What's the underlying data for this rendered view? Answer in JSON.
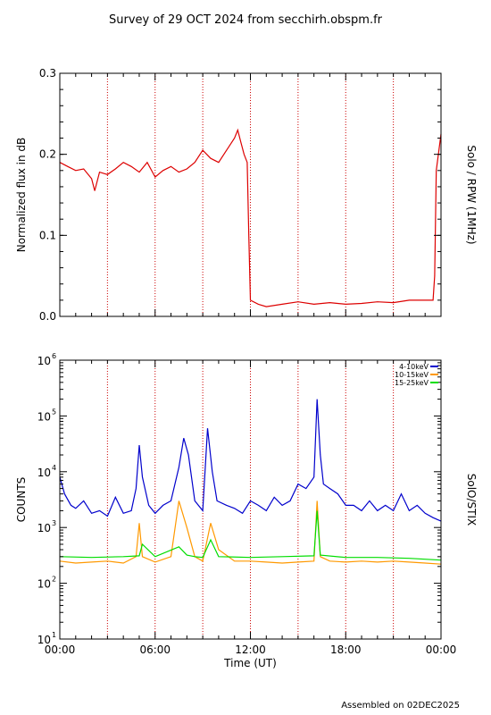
{
  "title": "Survey of 29 OCT 2024 from secchirh.obspm.fr",
  "footer": "Assembled on 02DEC2025",
  "colors": {
    "rpw": "#dd0000",
    "low": "#0000cc",
    "mid": "#ff9900",
    "high": "#00dd00",
    "grid": "#cc0000",
    "axis": "#000000"
  },
  "chart_data": [
    {
      "type": "line",
      "panel": "top",
      "ylabel": "Normalized flux in dB",
      "right_label": "Solo / RPW (1MHz)",
      "ylim": [
        0,
        0.3
      ],
      "xlim": [
        0,
        24
      ],
      "yticks": [
        {
          "v": 0.0,
          "label": "0.0"
        },
        {
          "v": 0.1,
          "label": "0.1"
        },
        {
          "v": 0.2,
          "label": "0.2"
        },
        {
          "v": 0.3,
          "label": "0.3"
        }
      ],
      "grid_x": [
        3,
        6,
        9,
        12,
        15,
        18,
        21
      ],
      "series": [
        {
          "color": "#dd0000",
          "x": [
            0,
            0.5,
            1.0,
            1.5,
            2.0,
            2.2,
            2.5,
            3.0,
            3.5,
            4.0,
            4.5,
            5.0,
            5.5,
            6.0,
            6.5,
            7.0,
            7.5,
            8.0,
            8.5,
            9.0,
            9.5,
            10.0,
            10.5,
            11.0,
            11.2,
            11.4,
            11.6,
            11.8,
            11.9,
            12.0,
            12.5,
            13.0,
            14.0,
            15.0,
            16.0,
            17.0,
            18.0,
            19.0,
            20.0,
            21.0,
            22.0,
            23.0,
            23.5,
            23.6,
            23.7,
            24.0
          ],
          "values": [
            0.19,
            0.185,
            0.18,
            0.182,
            0.17,
            0.155,
            0.178,
            0.175,
            0.182,
            0.19,
            0.185,
            0.178,
            0.19,
            0.172,
            0.18,
            0.185,
            0.178,
            0.182,
            0.19,
            0.205,
            0.195,
            0.19,
            0.205,
            0.22,
            0.23,
            0.215,
            0.2,
            0.19,
            0.1,
            0.02,
            0.015,
            0.012,
            0.015,
            0.018,
            0.015,
            0.017,
            0.015,
            0.016,
            0.018,
            0.017,
            0.02,
            0.02,
            0.02,
            0.05,
            0.18,
            0.225
          ]
        }
      ]
    },
    {
      "type": "line",
      "panel": "bottom",
      "ylabel": "COUNTS",
      "right_label": "SolO/STIX",
      "xlabel": "Time (UT)",
      "yscale": "log",
      "ylim": [
        10,
        1000000
      ],
      "xlim": [
        0,
        24
      ],
      "yticks": [
        {
          "v": 10,
          "base": "10",
          "exp": "1"
        },
        {
          "v": 100,
          "base": "10",
          "exp": "2"
        },
        {
          "v": 1000,
          "base": "10",
          "exp": "3"
        },
        {
          "v": 10000,
          "base": "10",
          "exp": "4"
        },
        {
          "v": 100000,
          "base": "10",
          "exp": "5"
        },
        {
          "v": 1000000,
          "base": "10",
          "exp": "6"
        }
      ],
      "xticks": [
        {
          "v": 0,
          "label": "00:00"
        },
        {
          "v": 6,
          "label": "06:00"
        },
        {
          "v": 12,
          "label": "12:00"
        },
        {
          "v": 18,
          "label": "18:00"
        },
        {
          "v": 24,
          "label": "00:00"
        }
      ],
      "grid_x": [
        3,
        6,
        9,
        12,
        15,
        18,
        21
      ],
      "legend": "top-right",
      "series": [
        {
          "name": "4-10keV",
          "color": "#0000cc",
          "x": [
            0,
            0.3,
            0.7,
            1.0,
            1.5,
            2.0,
            2.5,
            3.0,
            3.5,
            4.0,
            4.5,
            4.8,
            5.0,
            5.2,
            5.6,
            6.0,
            6.5,
            7.0,
            7.5,
            7.8,
            8.1,
            8.5,
            9.0,
            9.3,
            9.6,
            9.9,
            10.5,
            11.0,
            11.5,
            12.0,
            12.5,
            13.0,
            13.5,
            14.0,
            14.5,
            15.0,
            15.5,
            16.0,
            16.2,
            16.4,
            16.6,
            17.0,
            17.5,
            18.0,
            18.5,
            19.0,
            19.5,
            20.0,
            20.5,
            21.0,
            21.5,
            22.0,
            22.5,
            23.0,
            23.5,
            24.0
          ],
          "values": [
            8000,
            4000,
            2500,
            2200,
            3000,
            1800,
            2000,
            1600,
            3500,
            1800,
            2000,
            5000,
            30000,
            8000,
            2500,
            1800,
            2500,
            3000,
            12000,
            40000,
            20000,
            3000,
            2000,
            60000,
            10000,
            3000,
            2500,
            2200,
            1800,
            3000,
            2500,
            2000,
            3500,
            2500,
            3000,
            6000,
            5000,
            8000,
            200000,
            20000,
            6000,
            5000,
            4000,
            2500,
            2500,
            2000,
            3000,
            2000,
            2500,
            2000,
            4000,
            2000,
            2500,
            1800,
            1500,
            1300
          ]
        },
        {
          "name": "10-15keV",
          "color": "#ff9900",
          "x": [
            0,
            1.0,
            2.0,
            3.0,
            4.0,
            4.8,
            5.0,
            5.2,
            6.0,
            7.0,
            7.5,
            8.0,
            8.5,
            9.0,
            9.5,
            10.0,
            11.0,
            12.0,
            13.0,
            14.0,
            15.0,
            16.0,
            16.2,
            16.4,
            17.0,
            18.0,
            19.0,
            20.0,
            21.0,
            22.0,
            23.0,
            24.0
          ],
          "values": [
            250,
            230,
            240,
            250,
            230,
            300,
            1200,
            300,
            240,
            300,
            3000,
            1000,
            300,
            250,
            1200,
            400,
            250,
            250,
            240,
            230,
            240,
            250,
            3000,
            300,
            250,
            240,
            250,
            240,
            250,
            240,
            230,
            220
          ]
        },
        {
          "name": "15-25keV",
          "color": "#00dd00",
          "x": [
            0,
            2.0,
            4.0,
            5.0,
            5.2,
            6.0,
            7.5,
            8.0,
            8.5,
            9.0,
            9.5,
            10.0,
            12.0,
            14.0,
            16.0,
            16.2,
            16.4,
            18.0,
            20.0,
            22.0,
            24.0
          ],
          "values": [
            300,
            290,
            300,
            310,
            500,
            300,
            450,
            320,
            300,
            290,
            600,
            300,
            290,
            300,
            310,
            2000,
            320,
            290,
            290,
            280,
            260
          ]
        }
      ]
    }
  ]
}
